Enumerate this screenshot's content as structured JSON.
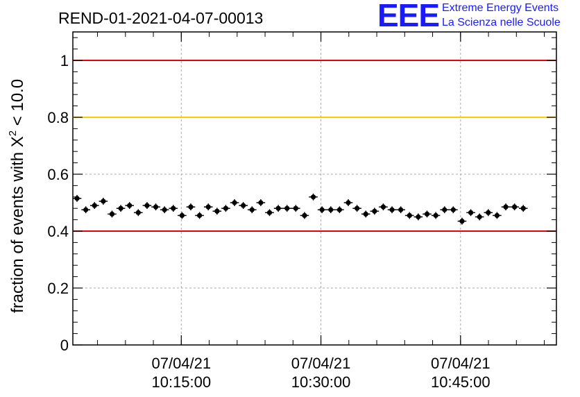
{
  "logo": {
    "mark": "EEE",
    "line1": "Extreme Energy Events",
    "line2": "La Scienza nelle Scuole"
  },
  "chart_data": {
    "type": "scatter",
    "title": "REND-01-2021-04-07-00013",
    "ylabel_main": "fraction of events with X",
    "ylabel_sup": "2",
    "ylabel_tail": " < 10.0",
    "xlabel": "",
    "ylim": [
      0,
      1.1
    ],
    "yticks": [
      "0",
      "0.2",
      "0.4",
      "0.6",
      "0.8",
      "1"
    ],
    "ytick_values": [
      0,
      0.2,
      0.4,
      0.6,
      0.8,
      1.0
    ],
    "xticks": [
      {
        "date": "07/04/21",
        "time": "10:15:00",
        "minute": 15
      },
      {
        "date": "07/04/21",
        "time": "10:30:00",
        "minute": 30
      },
      {
        "date": "07/04/21",
        "time": "10:45:00",
        "minute": 45
      }
    ],
    "xlim_minutes": [
      3.35,
      55.3
    ],
    "grid": true,
    "reference_lines": [
      {
        "y": 1.0,
        "color": "#e8000b"
      },
      {
        "y": 0.8,
        "color": "#ffcc00"
      },
      {
        "y": 0.4,
        "color": "#e8000b"
      }
    ],
    "series": [
      {
        "color": "#000000",
        "x_step_minutes": 0.94,
        "x_start_minutes": 3.8,
        "values": [
          0.515,
          0.475,
          0.49,
          0.505,
          0.46,
          0.48,
          0.49,
          0.465,
          0.49,
          0.485,
          0.475,
          0.48,
          0.455,
          0.485,
          0.455,
          0.485,
          0.47,
          0.48,
          0.5,
          0.49,
          0.475,
          0.5,
          0.465,
          0.48,
          0.48,
          0.48,
          0.455,
          0.52,
          0.475,
          0.475,
          0.475,
          0.5,
          0.48,
          0.46,
          0.47,
          0.485,
          0.475,
          0.475,
          0.455,
          0.45,
          0.46,
          0.455,
          0.475,
          0.475,
          0.435,
          0.465,
          0.45,
          0.465,
          0.455,
          0.485,
          0.485,
          0.48
        ],
        "y_error": 0.012
      }
    ]
  }
}
